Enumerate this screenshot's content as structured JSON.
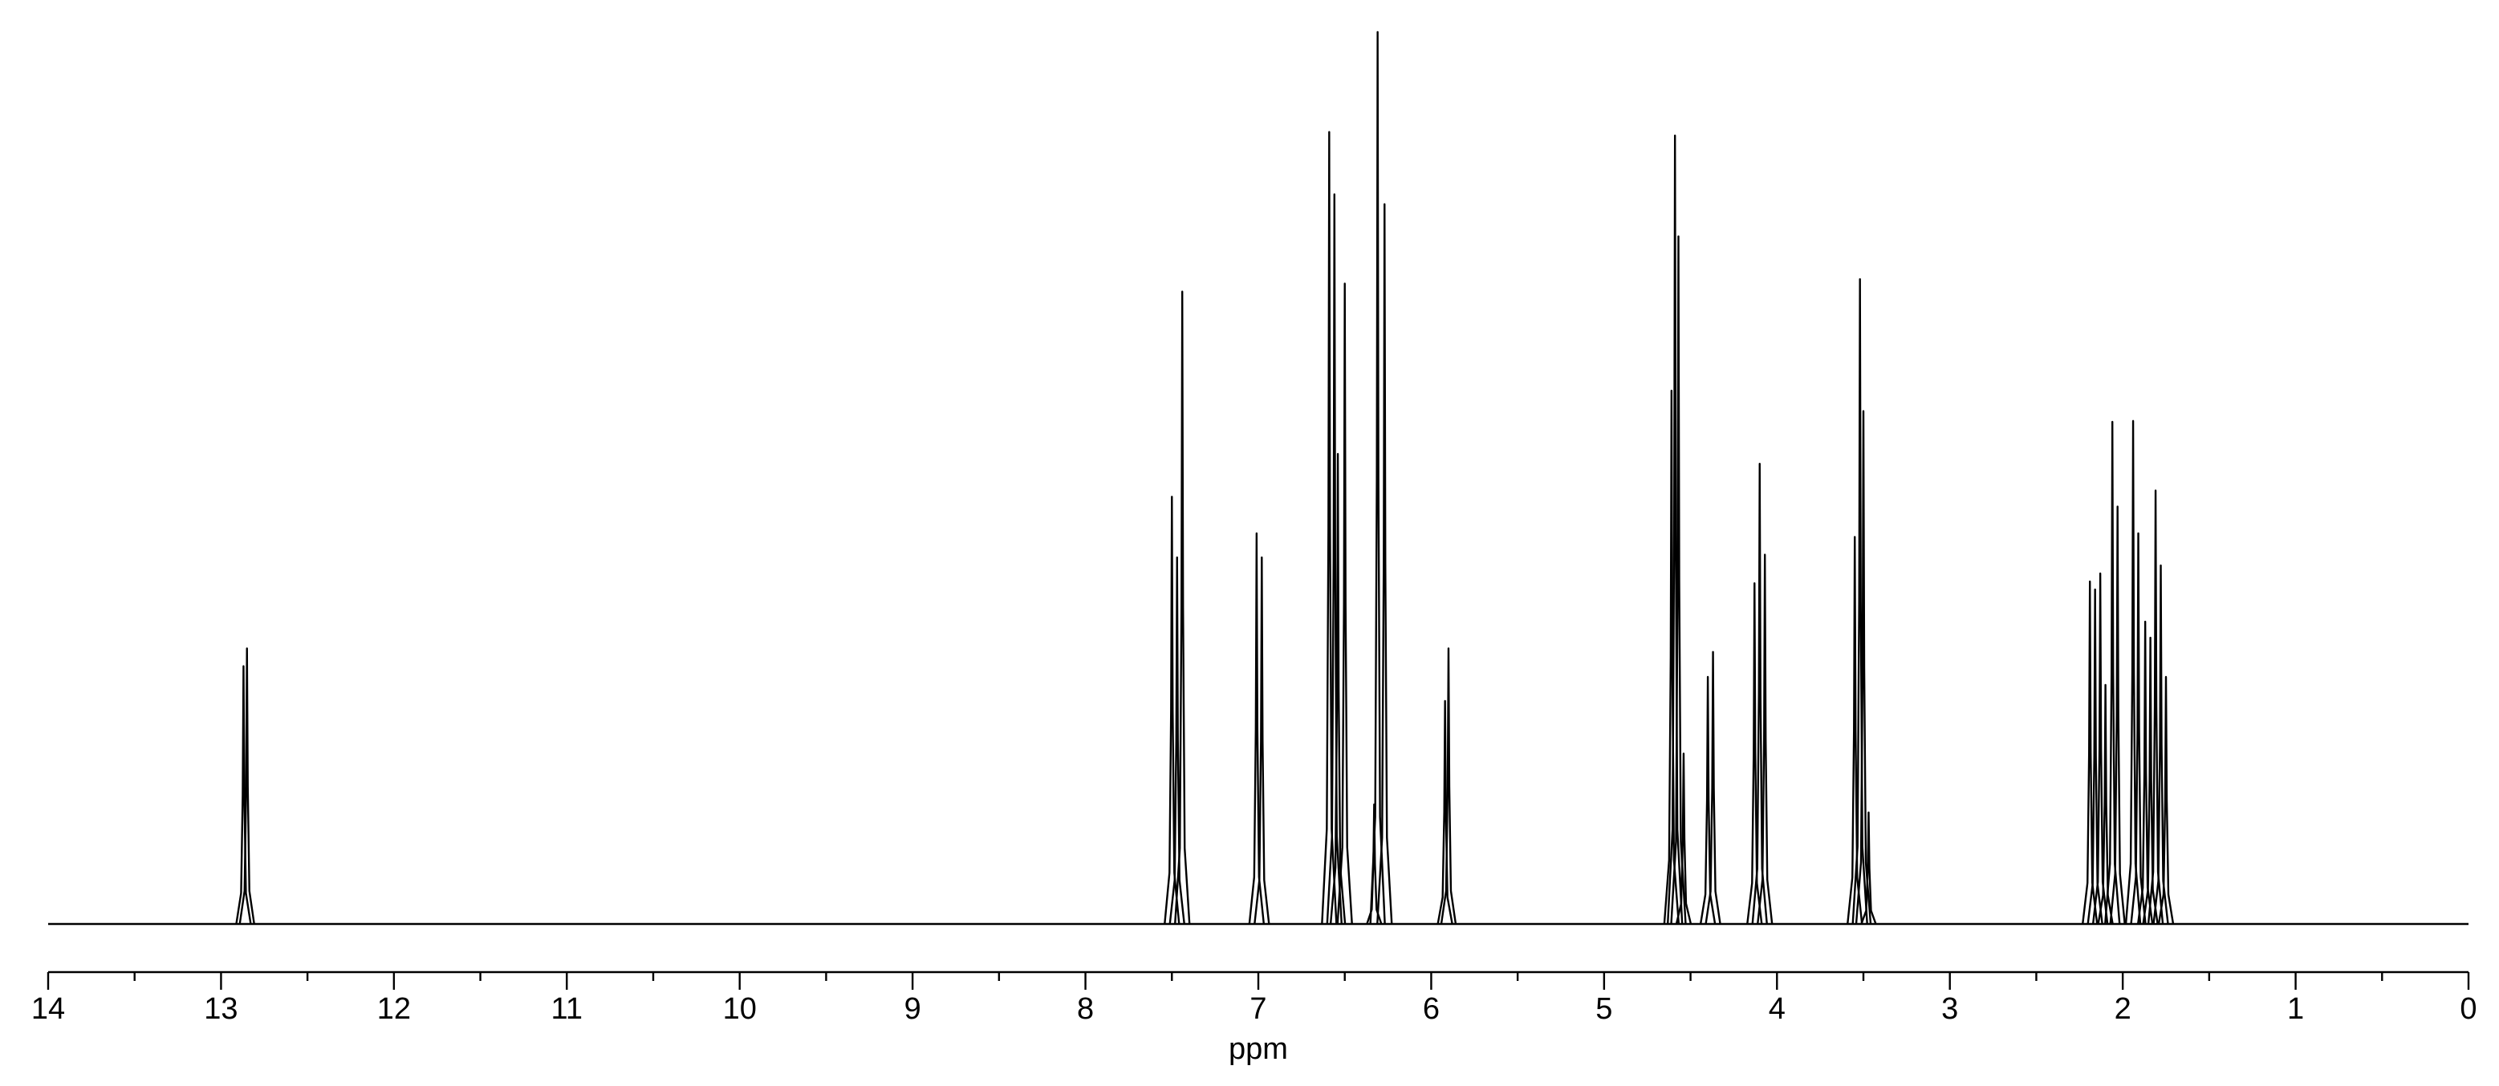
{
  "chart_data": {
    "type": "spectrum",
    "x_label": "ppm",
    "x": [
      12.87,
      12.85,
      7.5,
      7.47,
      7.44,
      7.01,
      6.98,
      6.59,
      6.56,
      6.54,
      6.5,
      6.33,
      6.31,
      6.27,
      5.92,
      5.9,
      4.61,
      4.59,
      4.57,
      4.54,
      4.4,
      4.37,
      4.13,
      4.1,
      4.07,
      3.55,
      3.52,
      3.5,
      3.47,
      2.19,
      2.16,
      2.13,
      2.1,
      2.06,
      2.03,
      1.94,
      1.91,
      1.87,
      1.84,
      1.81,
      1.78,
      1.75
    ],
    "values": [
      28.9,
      30.9,
      47.9,
      41.1,
      70.9,
      43.8,
      41.1,
      88.8,
      81.8,
      52.7,
      71.8,
      13.4,
      100,
      80.7,
      25,
      30.9,
      59.8,
      88.4,
      77.1,
      19.1,
      27.7,
      30.5,
      38.2,
      51.6,
      41.4,
      43.4,
      72.3,
      57.5,
      12.5,
      38.4,
      37.5,
      39.3,
      26.8,
      56.3,
      46.8,
      56.4,
      43.8,
      33.9,
      32.1,
      48.6,
      40.2,
      27.7
    ],
    "color": "#000000",
    "xlim": [
      14,
      0
    ],
    "ylim": [
      0,
      100
    ],
    "xticks": [
      14,
      13,
      12,
      11,
      10,
      9,
      8,
      7,
      6,
      5,
      4,
      3,
      2,
      1,
      0
    ]
  }
}
